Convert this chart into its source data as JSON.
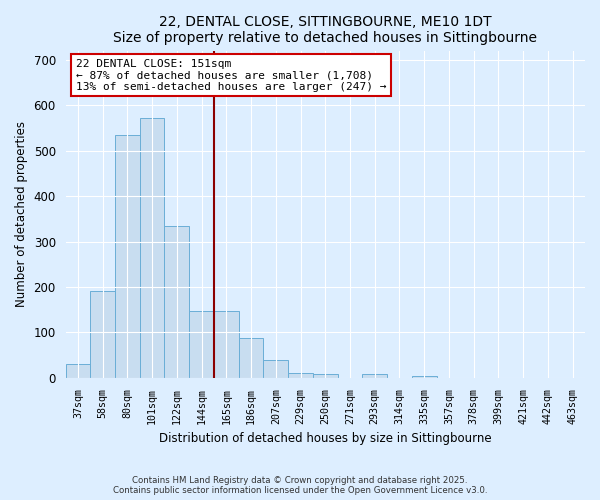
{
  "title": "22, DENTAL CLOSE, SITTINGBOURNE, ME10 1DT",
  "subtitle": "Size of property relative to detached houses in Sittingbourne",
  "xlabel": "Distribution of detached houses by size in Sittingbourne",
  "ylabel": "Number of detached properties",
  "bar_labels": [
    "37sqm",
    "58sqm",
    "80sqm",
    "101sqm",
    "122sqm",
    "144sqm",
    "165sqm",
    "186sqm",
    "207sqm",
    "229sqm",
    "250sqm",
    "271sqm",
    "293sqm",
    "314sqm",
    "335sqm",
    "357sqm",
    "378sqm",
    "399sqm",
    "421sqm",
    "442sqm",
    "463sqm"
  ],
  "bar_values": [
    30,
    192,
    535,
    572,
    335,
    148,
    148,
    87,
    40,
    11,
    9,
    0,
    8,
    0,
    4,
    0,
    0,
    0,
    0,
    0,
    0
  ],
  "bar_color": "#c8ddf0",
  "bar_edge_color": "#6aaed6",
  "vline_index": 5.5,
  "vline_color": "#8b0000",
  "ylim": [
    0,
    720
  ],
  "yticks": [
    0,
    100,
    200,
    300,
    400,
    500,
    600,
    700
  ],
  "annotation_title": "22 DENTAL CLOSE: 151sqm",
  "annotation_line1": "← 87% of detached houses are smaller (1,708)",
  "annotation_line2": "13% of semi-detached houses are larger (247) →",
  "footer_line1": "Contains HM Land Registry data © Crown copyright and database right 2025.",
  "footer_line2": "Contains public sector information licensed under the Open Government Licence v3.0.",
  "background_color": "#ddeeff",
  "plot_background": "#ddeeff",
  "grid_color": "#ffffff"
}
